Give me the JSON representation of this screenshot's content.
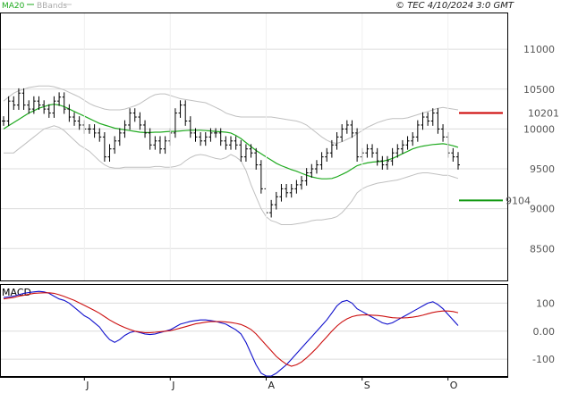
{
  "header": {
    "legend_ma": "MA20",
    "legend_bb": "BBands",
    "title": "© TEC 4/10/2024 3:0 GMT"
  },
  "colors": {
    "ma": "#1faa1f",
    "bbands": "#c0c0c0",
    "bars": "#000000",
    "resistance": "#cc0000",
    "support": "#119911",
    "macd": "#1010cc",
    "signal": "#cc1010",
    "grid": "#dcdcdc"
  },
  "chart_data": [
    {
      "type": "ohlc",
      "ylim": [
        8100,
        11450
      ],
      "yticks": [
        11000,
        10500,
        10000,
        9500,
        9000,
        8500
      ],
      "xlabels": [
        {
          "label": "J",
          "index": 16
        },
        {
          "label": "J",
          "index": 33
        },
        {
          "label": "A",
          "index": 52
        },
        {
          "label": "S",
          "index": 71
        },
        {
          "label": "O",
          "index": 88
        }
      ],
      "levels": [
        {
          "name": "resistance",
          "value": 10201,
          "label": "10201"
        },
        {
          "name": "support",
          "value": 9104,
          "label": "9104"
        }
      ],
      "close": [
        10100,
        10350,
        10300,
        10450,
        10300,
        10250,
        10350,
        10300,
        10250,
        10200,
        10350,
        10400,
        10250,
        10150,
        10100,
        10050,
        10000,
        10000,
        9950,
        9900,
        9650,
        9750,
        9850,
        9950,
        10050,
        10200,
        10150,
        10050,
        9950,
        9800,
        9850,
        9750,
        9850,
        9950,
        10200,
        10300,
        10100,
        9950,
        9900,
        9850,
        9900,
        9950,
        9950,
        9850,
        9800,
        9850,
        9800,
        9650,
        9750,
        9700,
        9550,
        9250,
        8950,
        9050,
        9150,
        9250,
        9200,
        9250,
        9300,
        9350,
        9450,
        9500,
        9550,
        9650,
        9700,
        9800,
        9900,
        10000,
        10050,
        9950,
        9650,
        9700,
        9750,
        9700,
        9600,
        9550,
        9600,
        9700,
        9750,
        9800,
        9850,
        9900,
        10050,
        10150,
        10100,
        10200,
        10000,
        9900,
        9700,
        9650,
        9550
      ],
      "ma20": [
        10000,
        10040,
        10080,
        10120,
        10160,
        10200,
        10230,
        10260,
        10280,
        10300,
        10310,
        10300,
        10280,
        10250,
        10220,
        10190,
        10160,
        10130,
        10100,
        10070,
        10050,
        10030,
        10010,
        10000,
        9990,
        9980,
        9970,
        9960,
        9955,
        9955,
        9960,
        9960,
        9965,
        9970,
        9970,
        9975,
        9980,
        9985,
        9985,
        9985,
        9980,
        9975,
        9970,
        9965,
        9960,
        9950,
        9920,
        9880,
        9830,
        9780,
        9730,
        9690,
        9650,
        9610,
        9570,
        9540,
        9515,
        9490,
        9470,
        9445,
        9420,
        9400,
        9385,
        9375,
        9375,
        9380,
        9400,
        9430,
        9460,
        9500,
        9540,
        9560,
        9575,
        9585,
        9590,
        9595,
        9610,
        9630,
        9660,
        9690,
        9720,
        9750,
        9770,
        9785,
        9795,
        9805,
        9810,
        9815,
        9805,
        9790,
        9770
      ],
      "bb_upper": [
        10350,
        10400,
        10450,
        10480,
        10500,
        10520,
        10530,
        10540,
        10540,
        10540,
        10530,
        10510,
        10490,
        10460,
        10430,
        10400,
        10360,
        10320,
        10290,
        10270,
        10250,
        10240,
        10240,
        10240,
        10250,
        10270,
        10290,
        10320,
        10360,
        10400,
        10430,
        10440,
        10440,
        10420,
        10400,
        10380,
        10370,
        10360,
        10350,
        10340,
        10330,
        10300,
        10270,
        10240,
        10200,
        10180,
        10160,
        10150,
        10150,
        10150,
        10150,
        10150,
        10150,
        10150,
        10140,
        10130,
        10120,
        10110,
        10100,
        10080,
        10050,
        10000,
        9950,
        9900,
        9860,
        9830,
        9820,
        9840,
        9870,
        9900,
        9940,
        9980,
        10020,
        10050,
        10080,
        10100,
        10120,
        10130,
        10130,
        10130,
        10140,
        10160,
        10180,
        10200,
        10220,
        10240,
        10260,
        10270,
        10260,
        10250,
        10240
      ],
      "bb_lower": [
        9700,
        9700,
        9700,
        9750,
        9800,
        9850,
        9900,
        9950,
        10000,
        10020,
        10040,
        10020,
        9980,
        9920,
        9860,
        9800,
        9760,
        9720,
        9660,
        9600,
        9550,
        9520,
        9510,
        9510,
        9520,
        9520,
        9520,
        9520,
        9520,
        9520,
        9530,
        9530,
        9520,
        9520,
        9530,
        9550,
        9600,
        9640,
        9670,
        9680,
        9670,
        9650,
        9630,
        9620,
        9640,
        9680,
        9650,
        9600,
        9480,
        9300,
        9150,
        9000,
        8900,
        8850,
        8830,
        8800,
        8800,
        8800,
        8810,
        8820,
        8830,
        8850,
        8860,
        8860,
        8870,
        8880,
        8900,
        8950,
        9020,
        9100,
        9200,
        9250,
        9280,
        9300,
        9320,
        9330,
        9340,
        9350,
        9360,
        9380,
        9400,
        9420,
        9440,
        9450,
        9450,
        9440,
        9430,
        9420,
        9420,
        9400,
        9380
      ]
    },
    {
      "type": "line",
      "title": "MACD",
      "ylim": [
        -160,
        165
      ],
      "yticks": [
        100,
        0,
        -100
      ],
      "ytick_labels": [
        "100",
        "0.00",
        "-100"
      ],
      "series": [
        {
          "key": "macd",
          "values": [
            120,
            122,
            125,
            130,
            135,
            138,
            140,
            142,
            140,
            135,
            125,
            115,
            110,
            100,
            85,
            70,
            55,
            45,
            30,
            15,
            -10,
            -30,
            -40,
            -30,
            -15,
            -5,
            0,
            -5,
            -10,
            -12,
            -10,
            -5,
            0,
            5,
            15,
            25,
            30,
            35,
            38,
            40,
            40,
            38,
            35,
            30,
            25,
            15,
            5,
            -10,
            -40,
            -80,
            -120,
            -150,
            -160,
            -160,
            -150,
            -135,
            -120,
            -100,
            -80,
            -60,
            -40,
            -20,
            0,
            20,
            40,
            65,
            90,
            105,
            110,
            100,
            80,
            70,
            60,
            50,
            40,
            30,
            25,
            30,
            40,
            50,
            60,
            70,
            80,
            90,
            100,
            105,
            95,
            80,
            60,
            40,
            20
          ]
        },
        {
          "key": "signal",
          "values": [
            115,
            118,
            120,
            125,
            128,
            132,
            135,
            136,
            137,
            137,
            135,
            130,
            124,
            117,
            110,
            101,
            92,
            83,
            74,
            64,
            52,
            40,
            30,
            21,
            13,
            6,
            0,
            -3,
            -5,
            -5,
            -4,
            -2,
            0,
            2,
            6,
            11,
            16,
            21,
            26,
            29,
            32,
            34,
            34,
            34,
            33,
            31,
            28,
            24,
            16,
            6,
            -10,
            -30,
            -50,
            -70,
            -90,
            -105,
            -118,
            -125,
            -120,
            -110,
            -95,
            -78,
            -60,
            -40,
            -20,
            0,
            18,
            33,
            44,
            52,
            56,
            58,
            58,
            57,
            56,
            54,
            51,
            48,
            47,
            47,
            48,
            50,
            53,
            57,
            62,
            67,
            70,
            72,
            72,
            70,
            66
          ]
        }
      ]
    }
  ]
}
